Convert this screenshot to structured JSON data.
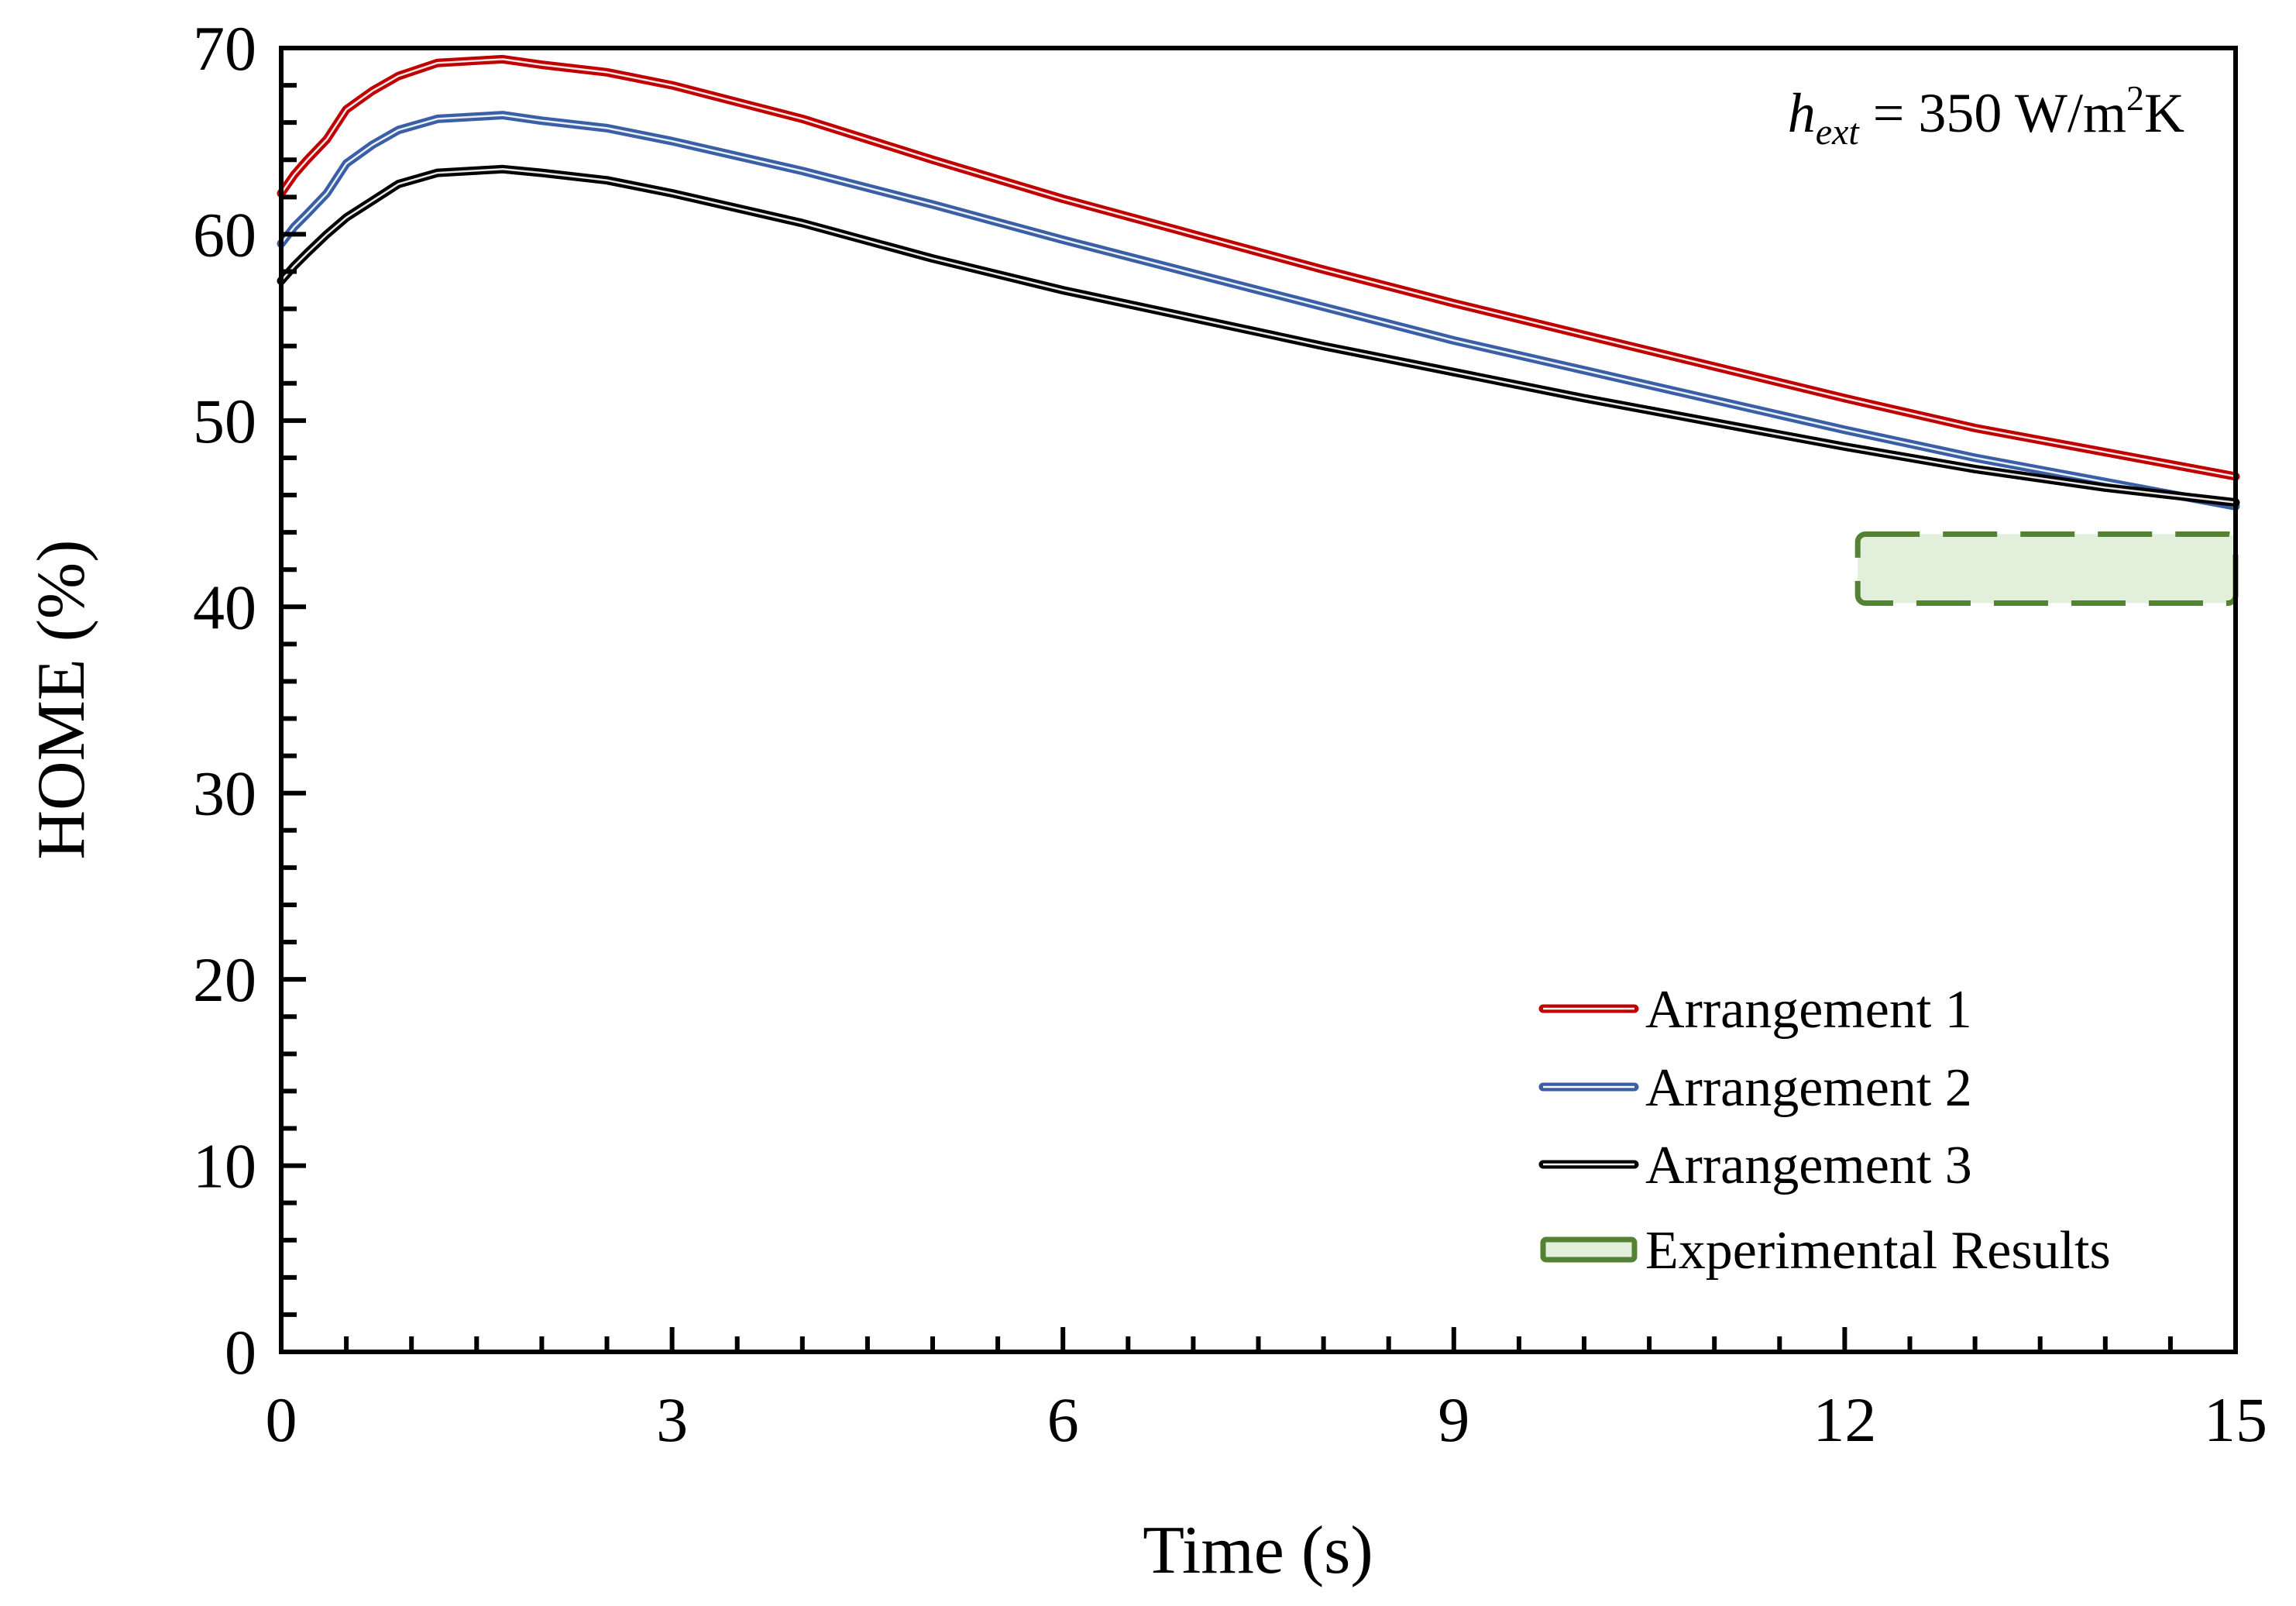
{
  "chart_data": {
    "type": "line",
    "title": "",
    "xlabel": "Time (s)",
    "ylabel": "HOME (%)",
    "xlim": [
      0,
      15
    ],
    "ylim": [
      0,
      70
    ],
    "xticks": [
      0,
      3,
      6,
      9,
      12,
      15
    ],
    "yticks": [
      0,
      10,
      20,
      30,
      40,
      50,
      60,
      70
    ],
    "grid": false,
    "legend_position": "bottom-right",
    "annotation": {
      "h_symbol": "h",
      "h_subscript": "ext",
      "equals_value": " = 350 W/m",
      "superscript": "2",
      "unit_tail": "K"
    },
    "series": [
      {
        "name": "Arrangement 1",
        "color": "#c00000",
        "x": [
          0.0,
          0.1,
          0.2,
          0.35,
          0.5,
          0.7,
          0.9,
          1.2,
          1.7,
          2.0,
          2.5,
          3.0,
          4.0,
          5.0,
          6.0,
          7.0,
          8.0,
          9.0,
          10.0,
          11.0,
          12.0,
          13.0,
          14.0,
          15.0
        ],
        "y": [
          62.2,
          63.2,
          64.0,
          65.1,
          66.7,
          67.7,
          68.5,
          69.2,
          69.4,
          69.1,
          68.7,
          68.0,
          66.2,
          64.0,
          61.9,
          60.0,
          58.1,
          56.3,
          54.6,
          52.9,
          51.2,
          49.6,
          48.3,
          47.0
        ]
      },
      {
        "name": "Arrangement 2",
        "color": "#3a5fa6",
        "x": [
          0.0,
          0.1,
          0.2,
          0.35,
          0.5,
          0.7,
          0.9,
          1.2,
          1.7,
          2.0,
          2.5,
          3.0,
          4.0,
          5.0,
          6.0,
          7.0,
          8.0,
          9.0,
          10.0,
          11.0,
          12.0,
          13.0,
          14.0,
          15.0
        ],
        "y": [
          59.5,
          60.4,
          61.1,
          62.2,
          63.8,
          64.8,
          65.6,
          66.2,
          66.4,
          66.1,
          65.7,
          65.0,
          63.4,
          61.6,
          59.7,
          57.9,
          56.1,
          54.3,
          52.7,
          51.1,
          49.5,
          48.0,
          46.7,
          45.4
        ]
      },
      {
        "name": "Arrangement 3",
        "color": "#000000",
        "x": [
          0.0,
          0.1,
          0.2,
          0.35,
          0.5,
          0.7,
          0.9,
          1.2,
          1.7,
          2.0,
          2.5,
          3.0,
          4.0,
          5.0,
          6.0,
          7.0,
          8.0,
          9.0,
          10.0,
          11.0,
          12.0,
          13.0,
          14.0,
          15.0
        ],
        "y": [
          57.5,
          58.3,
          59.0,
          60.0,
          60.9,
          61.8,
          62.7,
          63.3,
          63.5,
          63.3,
          62.9,
          62.2,
          60.6,
          58.7,
          57.0,
          55.5,
          54.0,
          52.6,
          51.2,
          49.9,
          48.6,
          47.4,
          46.4,
          45.6
        ]
      }
    ],
    "experimental": {
      "name": "Experimental Results",
      "x_range": [
        12.1,
        15.0
      ],
      "y_range": [
        40.2,
        43.9
      ],
      "fill": "#e2efda",
      "stroke": "#548235"
    }
  }
}
